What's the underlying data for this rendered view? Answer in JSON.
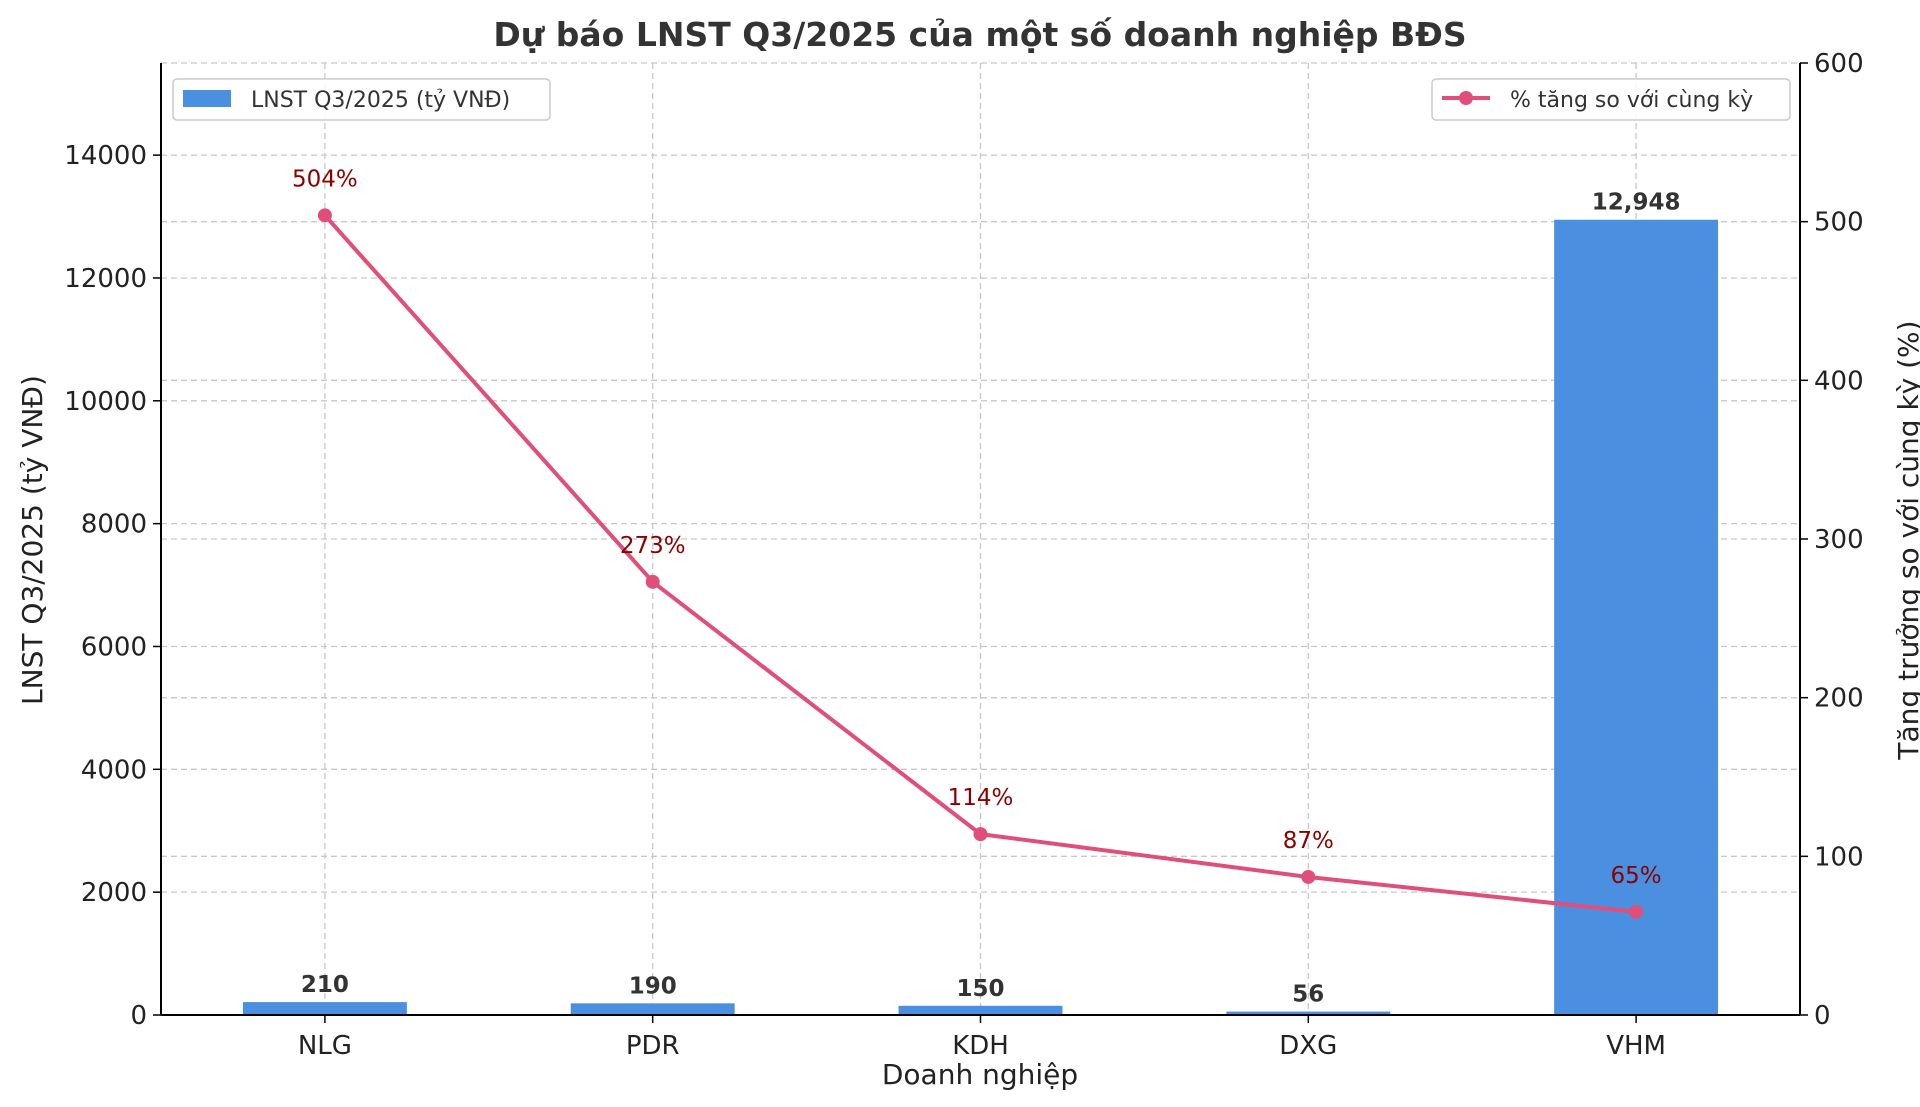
{
  "chart_data": {
    "type": "bar+line",
    "title": "Dự báo LNST Q3/2025 của một số doanh nghiệp BĐS",
    "xlabel": "Doanh nghiệp",
    "ylabel": "LNST Q3/2025 (tỷ VNĐ)",
    "y2label": "Tăng trưởng so với cùng kỳ (%)",
    "categories": [
      "NLG",
      "PDR",
      "KDH",
      "DXG",
      "VHM"
    ],
    "bar_series": {
      "name": "LNST Q3/2025 (tỷ VNĐ)",
      "values": [
        210,
        190,
        150,
        56,
        12948
      ],
      "labels": [
        "210",
        "190",
        "150",
        "56",
        "12,948"
      ],
      "color": "#4a8fe0"
    },
    "line_series": {
      "name": "% tăng so với cùng kỳ",
      "values": [
        504,
        273,
        114,
        87,
        65
      ],
      "labels": [
        "504%",
        "273%",
        "114%",
        "87%",
        "65%"
      ],
      "color": "#e04e7a",
      "label_color": "#8b0000"
    },
    "ylim": [
      0,
      15500
    ],
    "yticks": [
      0,
      2000,
      4000,
      6000,
      8000,
      10000,
      12000,
      14000
    ],
    "y2lim": [
      0,
      600
    ],
    "y2ticks": [
      0,
      100,
      200,
      300,
      400,
      500,
      600
    ],
    "grid": true,
    "legend_bar_position": "top-left",
    "legend_line_position": "top-right"
  }
}
